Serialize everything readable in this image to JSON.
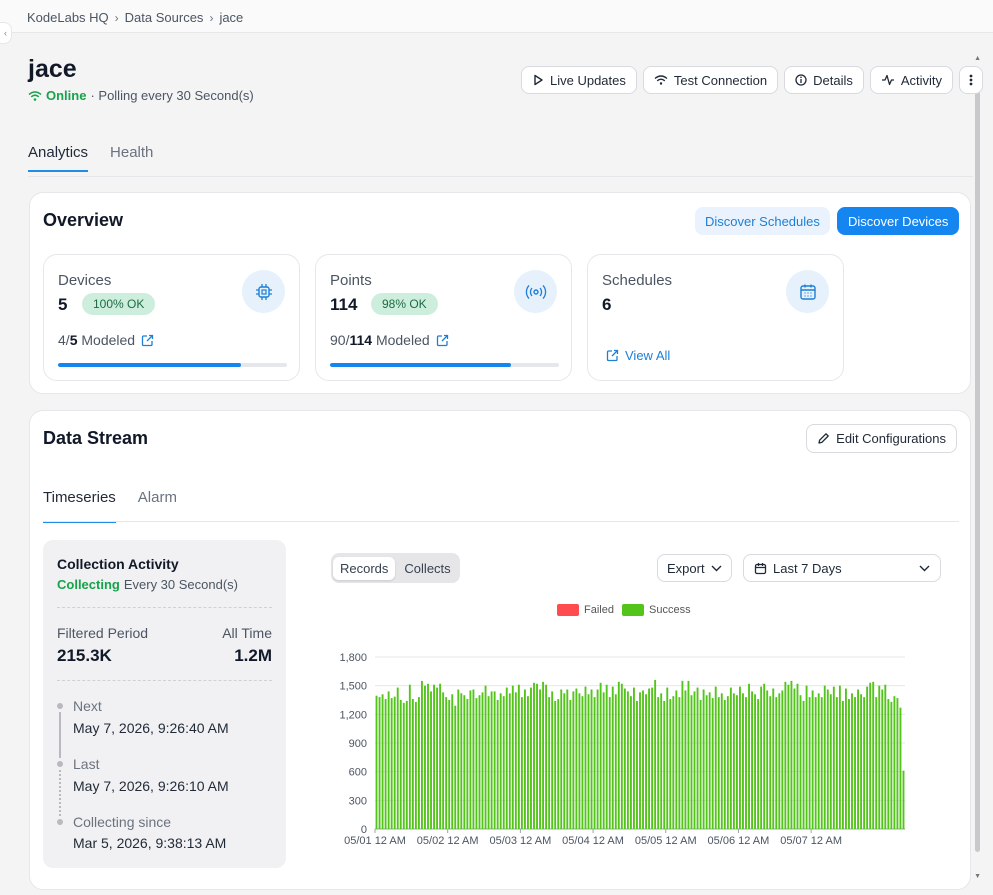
{
  "breadcrumb": {
    "items": [
      "KodeLabs HQ",
      "Data Sources",
      "jace"
    ]
  },
  "header": {
    "title": "jace",
    "status": "Online",
    "polling": "· Polling every 30 Second(s)",
    "buttons": {
      "live_updates": "Live Updates",
      "test_connection": "Test Connection",
      "details": "Details",
      "activity": "Activity"
    }
  },
  "tabs": [
    "Analytics",
    "Health"
  ],
  "overview": {
    "title": "Overview",
    "discover_schedules": "Discover Schedules",
    "discover_devices": "Discover Devices",
    "devices": {
      "label": "Devices",
      "count": "5",
      "badge": "100% OK",
      "modeled_count": "4",
      "modeled_total": "5",
      "modeled_suffix": " Modeled",
      "progress": 0.8
    },
    "points": {
      "label": "Points",
      "count": "114",
      "badge": "98% OK",
      "modeled_count": "90",
      "modeled_total": "114",
      "modeled_suffix": " Modeled",
      "progress": 0.79
    },
    "schedules": {
      "label": "Schedules",
      "count": "6",
      "view_all": "View All"
    }
  },
  "data_stream": {
    "title": "Data Stream",
    "edit_label": "Edit Configurations",
    "tabs": [
      "Timeseries",
      "Alarm"
    ],
    "collection": {
      "title": "Collection Activity",
      "state": "Collecting",
      "interval": "Every 30 Second(s)",
      "filtered_label": "Filtered Period",
      "filtered_value": "215.3K",
      "alltime_label": "All Time",
      "alltime_value": "1.2M",
      "next_label": "Next",
      "next_value": "May 7, 2026, 9:26:40 AM",
      "last_label": "Last",
      "last_value": "May 7, 2026, 9:26:10 AM",
      "since_label": "Collecting since",
      "since_value": "Mar 5, 2026, 9:38:13 AM"
    },
    "segment": [
      "Records",
      "Collects"
    ],
    "export_label": "Export",
    "range_label": "Last 7 Days"
  },
  "colors": {
    "accent": "#1585f0",
    "success": "#52c41a",
    "failed": "#ff4d4f",
    "online": "#16a34a"
  },
  "chart_data": {
    "type": "bar",
    "legend": [
      "Failed",
      "Success"
    ],
    "x_tick_labels": [
      "05/01 12 AM",
      "05/02 12 AM",
      "05/03 12 AM",
      "05/04 12 AM",
      "05/05 12 AM",
      "05/06 12 AM",
      "05/07 12 AM"
    ],
    "y_ticks": [
      0,
      300,
      600,
      900,
      1200,
      1500,
      1800
    ],
    "ylim": [
      0,
      1800
    ],
    "series": [
      {
        "name": "Failed",
        "values": []
      },
      {
        "name": "Success",
        "values": [
          1395,
          1380,
          1410,
          1360,
          1440,
          1370,
          1385,
          1480,
          1350,
          1320,
          1340,
          1510,
          1360,
          1330,
          1380,
          1550,
          1500,
          1520,
          1440,
          1510,
          1480,
          1520,
          1430,
          1380,
          1350,
          1410,
          1290,
          1460,
          1420,
          1400,
          1360,
          1450,
          1460,
          1370,
          1400,
          1430,
          1500,
          1390,
          1440,
          1440,
          1350,
          1420,
          1390,
          1480,
          1420,
          1500,
          1430,
          1510,
          1380,
          1460,
          1390,
          1480,
          1530,
          1520,
          1460,
          1540,
          1510,
          1380,
          1440,
          1340,
          1360,
          1460,
          1420,
          1460,
          1350,
          1440,
          1470,
          1420,
          1390,
          1490,
          1410,
          1460,
          1380,
          1460,
          1530,
          1430,
          1510,
          1380,
          1490,
          1410,
          1540,
          1520,
          1470,
          1440,
          1390,
          1480,
          1340,
          1430,
          1450,
          1410,
          1470,
          1480,
          1560,
          1380,
          1420,
          1340,
          1480,
          1360,
          1390,
          1450,
          1380,
          1550,
          1450,
          1550,
          1400,
          1440,
          1480,
          1350,
          1460,
          1400,
          1430,
          1370,
          1490,
          1380,
          1420,
          1350,
          1390,
          1480,
          1420,
          1400,
          1490,
          1420,
          1380,
          1520,
          1440,
          1410,
          1360,
          1490,
          1520,
          1450,
          1390,
          1470,
          1380,
          1420,
          1450,
          1540,
          1510,
          1550,
          1470,
          1520,
          1400,
          1340,
          1500,
          1380,
          1450,
          1380,
          1420,
          1380,
          1500,
          1460,
          1410,
          1490,
          1380,
          1500,
          1340,
          1470,
          1360,
          1420,
          1380,
          1460,
          1410,
          1380,
          1490,
          1530,
          1540,
          1380,
          1500,
          1460,
          1510,
          1360,
          1330,
          1390,
          1370,
          1270,
          610
        ]
      }
    ]
  }
}
